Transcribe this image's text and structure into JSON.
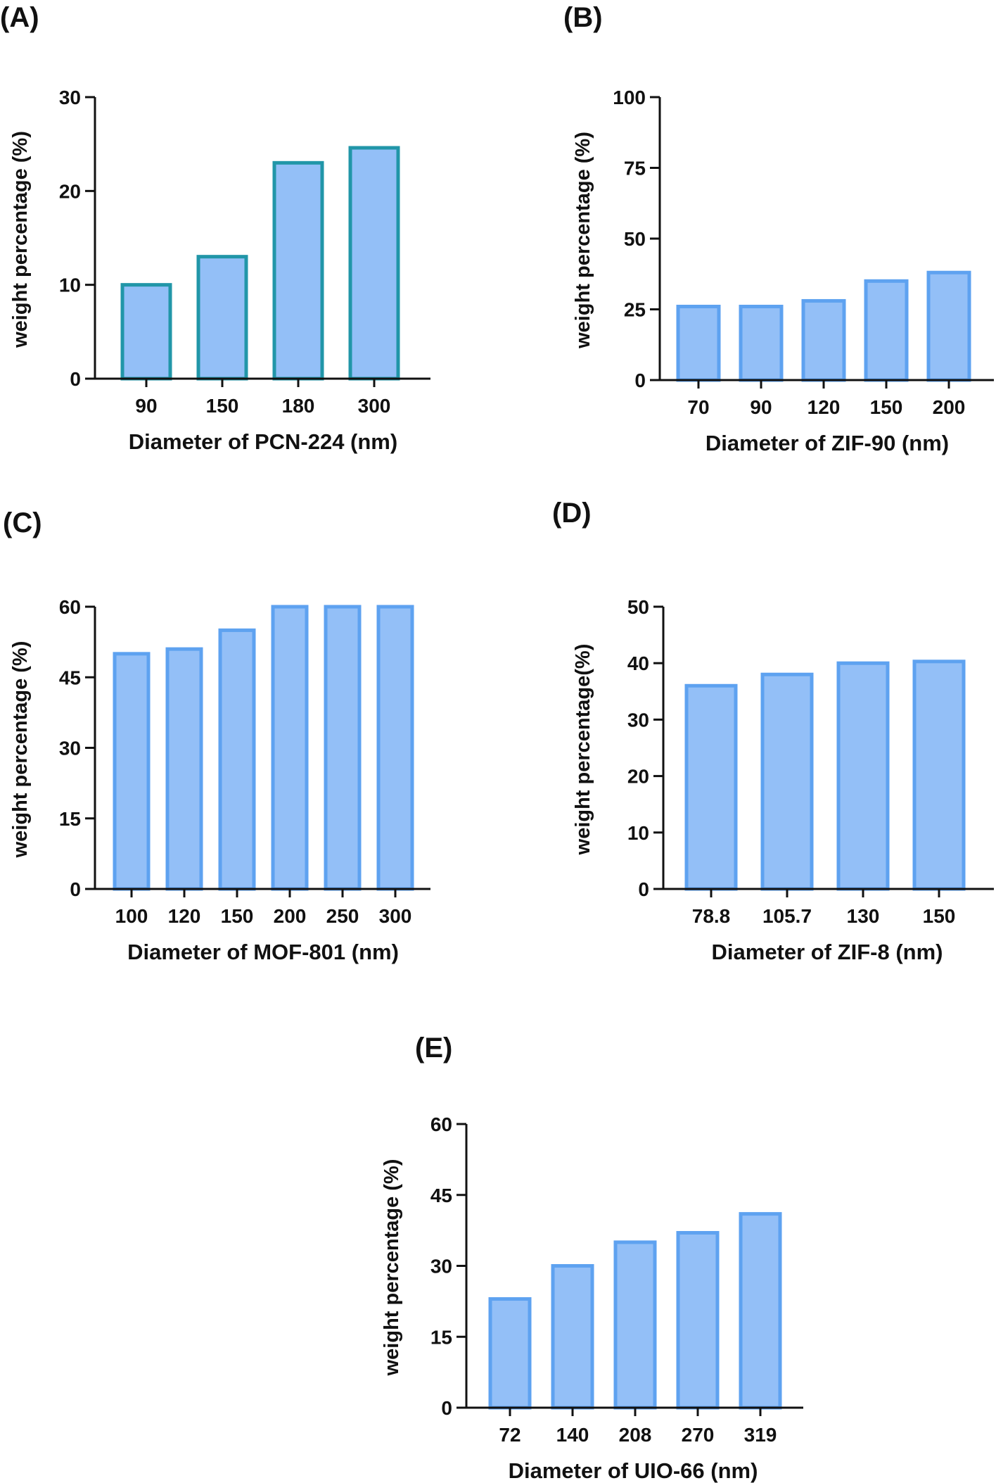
{
  "colors": {
    "bar_fill": "#93bff7",
    "bar_stroke_teal": "#2196a8",
    "bar_stroke_blue": "#5ea2f0",
    "axis": "#111111"
  },
  "chart_data": [
    {
      "panel": "(A)",
      "type": "bar",
      "categories": [
        "90",
        "150",
        "180",
        "300"
      ],
      "values": [
        10,
        13,
        23,
        24.6
      ],
      "xlabel": "Diameter of PCN-224 (nm)",
      "ylabel": "weight percentage (%)",
      "ylim": [
        0,
        30
      ],
      "yticks": [
        "0",
        "10",
        "20",
        "30"
      ],
      "stroke": "teal"
    },
    {
      "panel": "(B)",
      "type": "bar",
      "categories": [
        "70",
        "90",
        "120",
        "150",
        "200"
      ],
      "values": [
        26,
        26,
        28,
        35,
        38
      ],
      "xlabel": "Diameter of ZIF-90 (nm)",
      "ylabel": "weight percentage (%)",
      "ylim": [
        0,
        100
      ],
      "yticks": [
        "0",
        "25",
        "50",
        "75",
        "100"
      ],
      "stroke": "blue"
    },
    {
      "panel": "(C)",
      "type": "bar",
      "categories": [
        "100",
        "120",
        "150",
        "200",
        "250",
        "300"
      ],
      "values": [
        50,
        51,
        55,
        60,
        60,
        60
      ],
      "xlabel": "Diameter of MOF-801 (nm)",
      "ylabel": "weight percentage (%)",
      "ylim": [
        0,
        60
      ],
      "yticks": [
        "0",
        "15",
        "30",
        "45",
        "60"
      ],
      "stroke": "blue"
    },
    {
      "panel": "(D)",
      "type": "bar",
      "categories": [
        "78.8",
        "105.7",
        "130",
        "150"
      ],
      "values": [
        36,
        38,
        40,
        40.3
      ],
      "xlabel": "Diameter of ZIF-8 (nm)",
      "ylabel": "weight percentage(%)",
      "ylim": [
        0,
        50
      ],
      "yticks": [
        "0",
        "10",
        "20",
        "30",
        "40",
        "50"
      ],
      "stroke": "blue"
    },
    {
      "panel": "(E)",
      "type": "bar",
      "categories": [
        "72",
        "140",
        "208",
        "270",
        "319"
      ],
      "values": [
        23,
        30,
        35,
        37,
        41
      ],
      "xlabel": "Diameter of UIO-66 (nm)",
      "ylabel": "weight percentage (%)",
      "ylim": [
        0,
        60
      ],
      "yticks": [
        "0",
        "15",
        "30",
        "45",
        "60"
      ],
      "stroke": "blue"
    }
  ]
}
